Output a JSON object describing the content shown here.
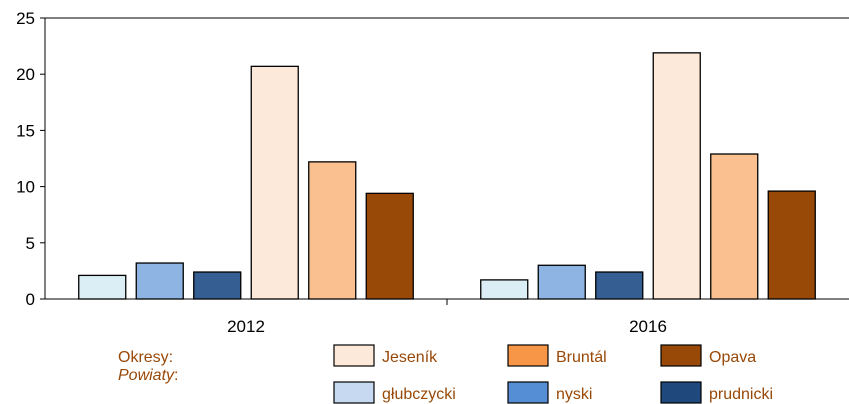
{
  "chart_data": {
    "type": "bar",
    "categories": [
      "2012",
      "2016"
    ],
    "ylim": [
      0,
      25
    ],
    "yticks": [
      0,
      5,
      10,
      15,
      20,
      25
    ],
    "grid": false,
    "legend_position": "bottom",
    "series": [
      {
        "name": "głubczycki",
        "values": [
          2.1,
          1.7
        ],
        "color": "#DCEEF5"
      },
      {
        "name": "nyski",
        "values": [
          3.2,
          3.0
        ],
        "color": "#8EB4E3"
      },
      {
        "name": "prudnicki",
        "values": [
          2.4,
          2.4
        ],
        "color": "#355E92"
      },
      {
        "name": "Jeseník",
        "values": [
          20.7,
          21.9
        ],
        "color": "#FDE9D9"
      },
      {
        "name": "Bruntál",
        "values": [
          12.2,
          12.9
        ],
        "color": "#FAC090"
      },
      {
        "name": "Opava",
        "values": [
          9.4,
          9.6
        ],
        "color": "#984807"
      }
    ],
    "legend": {
      "row1_label": "Okresy:",
      "row2_label": "Powiaty",
      "row2_suffix": ":",
      "label_color": "#984807",
      "row1": [
        {
          "name": "Jeseník",
          "color": "#FDE9D9"
        },
        {
          "name": "Bruntál",
          "color": "#F79646"
        },
        {
          "name": "Opava",
          "color": "#984807"
        }
      ],
      "row2": [
        {
          "name": "głubczycki",
          "color": "#C6D9F1"
        },
        {
          "name": "nyski",
          "color": "#558ED5"
        },
        {
          "name": "prudnicki",
          "color": "#1F497D"
        }
      ]
    }
  }
}
